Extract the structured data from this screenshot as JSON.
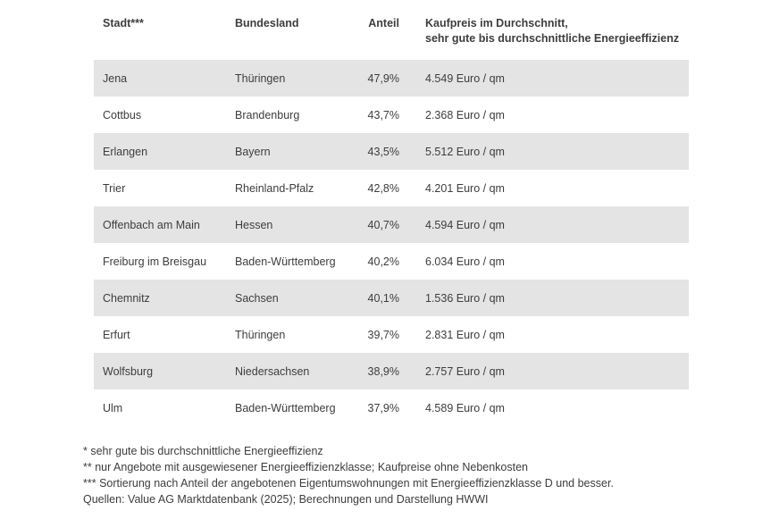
{
  "colors": {
    "background": "#ffffff",
    "row_alt": "#e4e4e4",
    "text": "#3d3d3d"
  },
  "table": {
    "header": {
      "stadt": "Stadt***",
      "bundesland": "Bundesland",
      "anteil": "Anteil",
      "kaufpreis_line1": "Kaufpreis im Durchschnitt,",
      "kaufpreis_line2": "sehr gute bis durchschnittliche Energieeffizienz"
    }
  },
  "chart_data": {
    "type": "table",
    "columns": [
      "Stadt***",
      "Bundesland",
      "Anteil",
      "Kaufpreis im Durchschnitt, sehr gute bis durchschnittliche Energieeffizienz"
    ],
    "rows": [
      {
        "stadt": "Jena",
        "bundesland": "Thüringen",
        "anteil": "47,9%",
        "anteil_value": 47.9,
        "kaufpreis": "4.549 Euro / qm",
        "kaufpreis_value": 4549
      },
      {
        "stadt": "Cottbus",
        "bundesland": "Brandenburg",
        "anteil": "43,7%",
        "anteil_value": 43.7,
        "kaufpreis": "2.368 Euro / qm",
        "kaufpreis_value": 2368
      },
      {
        "stadt": "Erlangen",
        "bundesland": "Bayern",
        "anteil": "43,5%",
        "anteil_value": 43.5,
        "kaufpreis": "5.512 Euro / qm",
        "kaufpreis_value": 5512
      },
      {
        "stadt": "Trier",
        "bundesland": "Rheinland-Pfalz",
        "anteil": "42,8%",
        "anteil_value": 42.8,
        "kaufpreis": "4.201 Euro / qm",
        "kaufpreis_value": 4201
      },
      {
        "stadt": "Offenbach am Main",
        "bundesland": "Hessen",
        "anteil": "40,7%",
        "anteil_value": 40.7,
        "kaufpreis": "4.594 Euro / qm",
        "kaufpreis_value": 4594
      },
      {
        "stadt": "Freiburg im Breisgau",
        "bundesland": "Baden-Württemberg",
        "anteil": "40,2%",
        "anteil_value": 40.2,
        "kaufpreis": "6.034 Euro / qm",
        "kaufpreis_value": 6034
      },
      {
        "stadt": "Chemnitz",
        "bundesland": "Sachsen",
        "anteil": "40,1%",
        "anteil_value": 40.1,
        "kaufpreis": "1.536 Euro / qm",
        "kaufpreis_value": 1536
      },
      {
        "stadt": "Erfurt",
        "bundesland": "Thüringen",
        "anteil": "39,7%",
        "anteil_value": 39.7,
        "kaufpreis": "2.831 Euro / qm",
        "kaufpreis_value": 2831
      },
      {
        "stadt": "Wolfsburg",
        "bundesland": "Niedersachsen",
        "anteil": "38,9%",
        "anteil_value": 38.9,
        "kaufpreis": "2.757 Euro / qm",
        "kaufpreis_value": 2757
      },
      {
        "stadt": "Ulm",
        "bundesland": "Baden-Württemberg",
        "anteil": "37,9%",
        "anteil_value": 37.9,
        "kaufpreis": "4.589 Euro / qm",
        "kaufpreis_value": 4589
      }
    ]
  },
  "footnotes": [
    "* sehr gute bis durchschnittliche Energieeffizienz",
    "** nur Angebote mit ausgewiesener Energieeffizienzklasse; Kaufpreise ohne Nebenkosten",
    "*** Sortierung nach Anteil der angebotenen Eigentumswohnungen mit Energieeffizienzklasse D und besser.",
    "Quellen: Value AG Marktdatenbank (2025); Berechnungen und Darstellung HWWI"
  ]
}
